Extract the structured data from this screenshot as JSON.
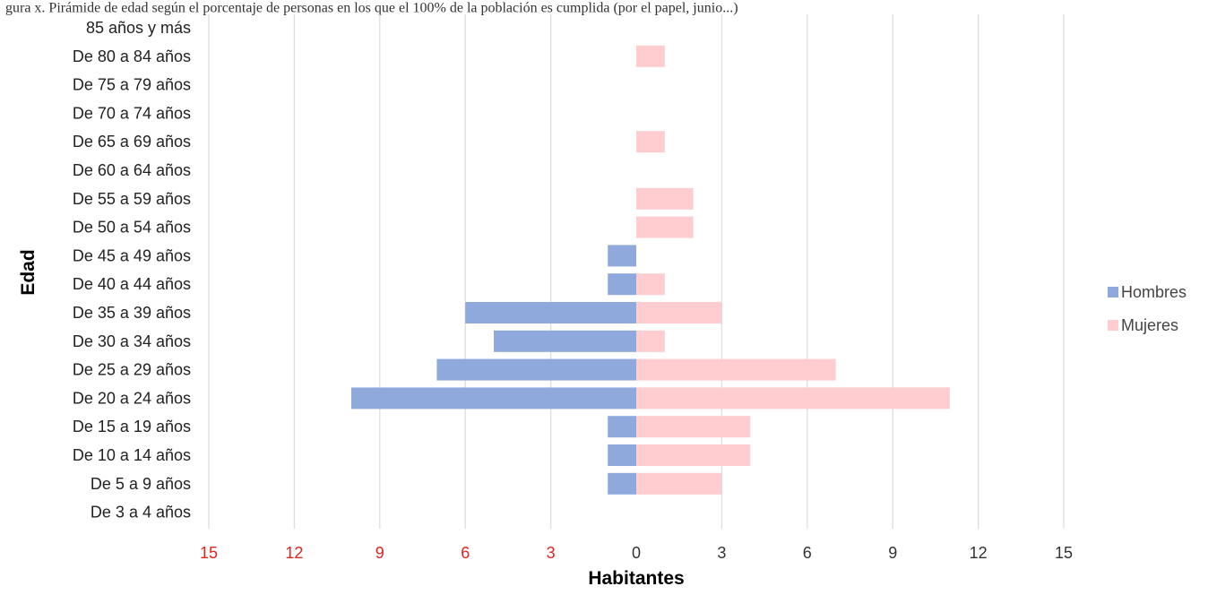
{
  "caption": "gura x. Pirámide de edad según el porcentaje de personas en los que el 100% de la población es cumplida (por el papel, junio...)",
  "colors": {
    "hombres": "#8FA9DC",
    "mujeres": "#FFCCCF",
    "grid": "#DDDDDD",
    "negative_tick": "#E0241F",
    "positive_tick": "#333333"
  },
  "chart_data": {
    "type": "bar",
    "orientation": "horizontal",
    "categories": [
      "85 años y más",
      "De 80 a 84 años",
      "De 75 a 79 años",
      "De 70 a 74 años",
      "De 65 a 69 años",
      "De 60 a 64 años",
      "De 55 a 59 años",
      "De 50 a 54 años",
      "De 45 a 49 años",
      "De 40 a 44 años",
      "De 35 a 39 años",
      "De 30 a 34 años",
      "De 25 a 29 años",
      "De 20 a 24 años",
      "De 15 a 19 años",
      "De 10 a 14 años",
      "De 5 a 9 años",
      "De 3 a 4 años"
    ],
    "series": [
      {
        "name": "Hombres",
        "values": [
          0,
          0,
          0,
          0,
          0,
          0,
          0,
          0,
          1,
          1,
          6,
          5,
          7,
          10,
          1,
          1,
          1,
          0
        ]
      },
      {
        "name": "Mujeres",
        "values": [
          0,
          1,
          0,
          0,
          1,
          0,
          2,
          2,
          0,
          1,
          3,
          1,
          7,
          11,
          4,
          4,
          3,
          0
        ]
      }
    ],
    "xlim": [
      -15,
      15
    ],
    "xticks": [
      -15,
      -12,
      -9,
      -6,
      -3,
      0,
      3,
      6,
      9,
      12,
      15
    ],
    "xtick_labels": [
      "15",
      "12",
      "9",
      "6",
      "3",
      "0",
      "3",
      "6",
      "9",
      "12",
      "15"
    ],
    "xlabel": "Habitantes",
    "ylabel": "Edad",
    "legend": {
      "position": "right",
      "entries": [
        "Hombres",
        "Mujeres"
      ]
    },
    "grid": true
  }
}
